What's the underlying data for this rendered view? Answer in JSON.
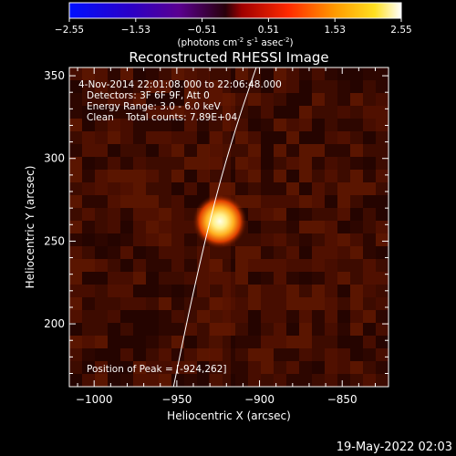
{
  "colorbar": {
    "ticks": [
      "-2.55",
      "-1.53",
      "-0.51",
      "0.51",
      "1.53",
      "2.55"
    ],
    "units_main": "(photons cm",
    "units_sup1": "-2",
    "units_mid1": " s",
    "units_sup2": "-1",
    "units_mid2": " asec",
    "units_sup3": "-2",
    "units_end": ")"
  },
  "chart_data": {
    "type": "heatmap",
    "title": "Reconstructed RHESSI Image",
    "xlabel": "Heliocentric X (arcsec)",
    "ylabel": "Heliocentric Y (arcsec)",
    "xlim": [
      -1015,
      -822
    ],
    "ylim": [
      162,
      355
    ],
    "x_ticks": [
      {
        "value": -1000,
        "label": "−1000"
      },
      {
        "value": -950,
        "label": "−950"
      },
      {
        "value": -900,
        "label": "−900"
      },
      {
        "value": -850,
        "label": "−850"
      }
    ],
    "y_ticks": [
      {
        "value": 200,
        "label": "200"
      },
      {
        "value": 250,
        "label": "250"
      },
      {
        "value": 300,
        "label": "300"
      },
      {
        "value": 350,
        "label": "350"
      }
    ],
    "colorscale": "red-temperature",
    "peak": {
      "x": -924,
      "y": 262
    },
    "limb_curve": [
      {
        "x": -952,
        "y": 162
      },
      {
        "x": -940,
        "y": 220
      },
      {
        "x": -927,
        "y": 275
      },
      {
        "x": -914,
        "y": 320
      },
      {
        "x": -902,
        "y": 355
      }
    ],
    "annotations": [
      "4-Nov-2014 22:01:08.000 to 22:06:48.000",
      "Detectors: 3F 6F 9F, Att 0",
      "Energy Range: 3.0 - 6.0 keV",
      "Clean    Total counts: 7.89E+04"
    ],
    "peak_label": "Position of Peak = [-924,262]"
  },
  "footer": {
    "timestamp": "19-May-2022 02:03"
  }
}
